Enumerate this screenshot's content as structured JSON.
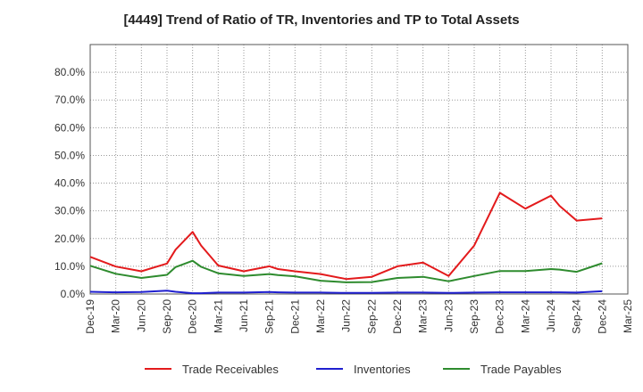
{
  "chart_data": {
    "type": "line",
    "title": "[4449]  Trend of Ratio of TR, Inventories and TP to Total Assets",
    "xlabel": "",
    "ylabel": "",
    "ylim": [
      0,
      0.9
    ],
    "y_ticks": [
      0,
      0.1,
      0.2,
      0.3,
      0.4,
      0.5,
      0.6,
      0.7,
      0.8
    ],
    "y_tick_labels": [
      "0.0%",
      "10.0%",
      "20.0%",
      "30.0%",
      "40.0%",
      "50.0%",
      "60.0%",
      "70.0%",
      "80.0%"
    ],
    "x_tick_labels": [
      "Dec-19",
      "Mar-20",
      "Jun-20",
      "Sep-20",
      "Dec-20",
      "Mar-21",
      "Jun-21",
      "Sep-21",
      "Dec-21",
      "Mar-22",
      "Jun-22",
      "Sep-22",
      "Dec-22",
      "Mar-23",
      "Jun-23",
      "Sep-23",
      "Dec-23",
      "Mar-24",
      "Jun-24",
      "Sep-24",
      "Dec-24",
      "Mar-25"
    ],
    "x": [
      "Dec-19",
      "Mar-20",
      "Jun-20",
      "Sep-20",
      "Oct-20",
      "Dec-20",
      "Jan-21",
      "Mar-21",
      "Jun-21",
      "Sep-21",
      "Oct-21",
      "Dec-21",
      "Mar-22",
      "Jun-22",
      "Sep-22",
      "Dec-22",
      "Mar-23",
      "Jun-23",
      "Sep-23",
      "Dec-23",
      "Mar-24",
      "Jun-24",
      "Jul-24",
      "Sep-24",
      "Dec-24"
    ],
    "grid": true,
    "legend_position": "bottom",
    "series": [
      {
        "name": "Trade Receivables",
        "color": "#e31a1c",
        "values": [
          0.134,
          0.099,
          0.082,
          0.11,
          0.16,
          0.224,
          0.175,
          0.103,
          0.082,
          0.1,
          0.09,
          0.082,
          0.072,
          0.054,
          0.062,
          0.1,
          0.113,
          0.065,
          0.175,
          0.365,
          0.308,
          0.355,
          0.318,
          0.265,
          0.273
        ]
      },
      {
        "name": "Inventories",
        "color": "#1f1fcf",
        "values": [
          0.008,
          0.006,
          0.007,
          0.012,
          0.008,
          0.003,
          0.003,
          0.005,
          0.005,
          0.007,
          0.006,
          0.005,
          0.005,
          0.004,
          0.004,
          0.005,
          0.005,
          0.004,
          0.005,
          0.006,
          0.006,
          0.006,
          0.006,
          0.005,
          0.01
        ]
      },
      {
        "name": "Trade Payables",
        "color": "#2e8b2e",
        "values": [
          0.102,
          0.073,
          0.058,
          0.069,
          0.097,
          0.12,
          0.098,
          0.075,
          0.065,
          0.072,
          0.068,
          0.064,
          0.048,
          0.042,
          0.043,
          0.058,
          0.062,
          0.046,
          0.065,
          0.083,
          0.083,
          0.09,
          0.088,
          0.08,
          0.111
        ]
      }
    ]
  }
}
